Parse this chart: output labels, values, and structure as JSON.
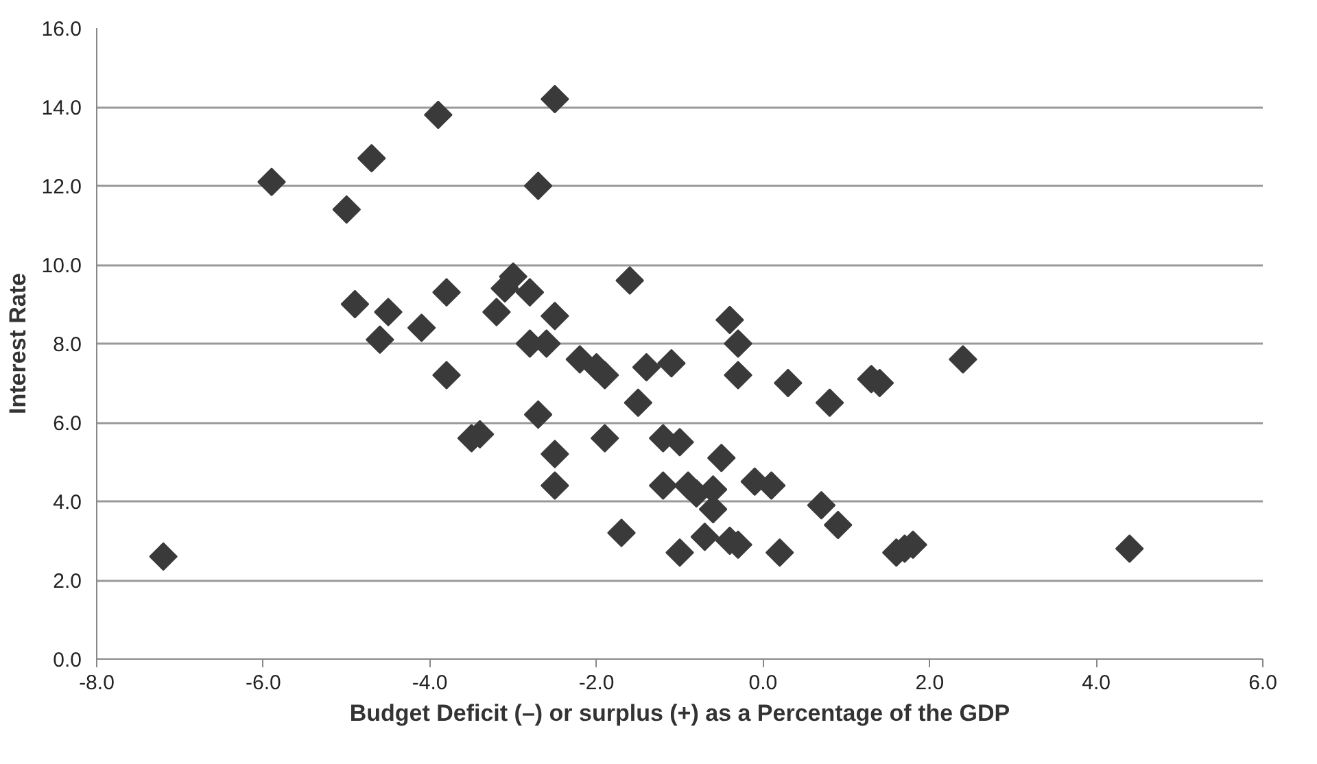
{
  "chart_data": {
    "type": "scatter",
    "xlabel": "Budget Deficit (–) or surplus (+) as a Percentage of the GDP",
    "ylabel": "Interest Rate",
    "marker": "diamond",
    "grid": "y",
    "xlim": [
      -8,
      6
    ],
    "ylim": [
      0,
      16
    ],
    "xticks": [
      {
        "value": -8,
        "label": "-8.0"
      },
      {
        "value": -6,
        "label": "-6.0"
      },
      {
        "value": -4,
        "label": "-4.0"
      },
      {
        "value": -2,
        "label": "-2.0"
      },
      {
        "value": 0,
        "label": "0.0"
      },
      {
        "value": 2,
        "label": "2.0"
      },
      {
        "value": 4,
        "label": "4.0"
      },
      {
        "value": 6,
        "label": "6.0"
      }
    ],
    "yticks": [
      {
        "value": 0,
        "label": "0.0"
      },
      {
        "value": 2,
        "label": "2.0"
      },
      {
        "value": 4,
        "label": "4.0"
      },
      {
        "value": 6,
        "label": "6.0"
      },
      {
        "value": 8,
        "label": "8.0"
      },
      {
        "value": 10,
        "label": "10.0"
      },
      {
        "value": 12,
        "label": "12.0"
      },
      {
        "value": 14,
        "label": "14.0"
      },
      {
        "value": 16,
        "label": "16.0"
      }
    ],
    "series": [
      {
        "color": "#3a3a3a",
        "x": [
          -7.2,
          -5.9,
          -5.0,
          -4.9,
          -4.7,
          -4.6,
          -4.5,
          -4.1,
          -3.9,
          -3.8,
          -3.8,
          -3.5,
          -3.4,
          -3.2,
          -3.1,
          -3.0,
          -2.8,
          -2.8,
          -2.7,
          -2.6,
          -2.7,
          -2.5,
          -2.5,
          -2.5,
          -2.5,
          -2.2,
          -2.0,
          -1.9,
          -1.9,
          -1.7,
          -1.6,
          -1.5,
          -1.4,
          -1.2,
          -1.2,
          -1.1,
          -1.0,
          -1.0,
          -0.9,
          -0.8,
          -0.7,
          -0.6,
          -0.6,
          -0.5,
          -0.4,
          -0.4,
          -0.3,
          -0.3,
          -0.3,
          -0.1,
          0.1,
          0.2,
          0.3,
          0.7,
          0.8,
          0.9,
          1.3,
          1.4,
          1.6,
          1.7,
          1.8,
          2.4,
          4.4
        ],
        "values": [
          2.6,
          12.1,
          11.4,
          9.0,
          12.7,
          8.1,
          8.8,
          8.4,
          13.8,
          9.3,
          7.2,
          5.6,
          5.7,
          8.8,
          9.4,
          9.7,
          8.0,
          9.3,
          6.2,
          8.0,
          12.0,
          14.2,
          8.7,
          5.2,
          4.4,
          7.6,
          7.4,
          7.2,
          5.6,
          3.2,
          9.6,
          6.5,
          7.4,
          5.6,
          4.4,
          7.5,
          5.5,
          2.7,
          4.4,
          4.2,
          3.1,
          3.8,
          4.3,
          5.1,
          8.6,
          3.0,
          2.9,
          8.0,
          7.2,
          4.5,
          4.4,
          2.7,
          7.0,
          3.9,
          6.5,
          3.4,
          7.1,
          7.0,
          2.7,
          2.8,
          2.9,
          7.6,
          2.8
        ]
      }
    ]
  }
}
